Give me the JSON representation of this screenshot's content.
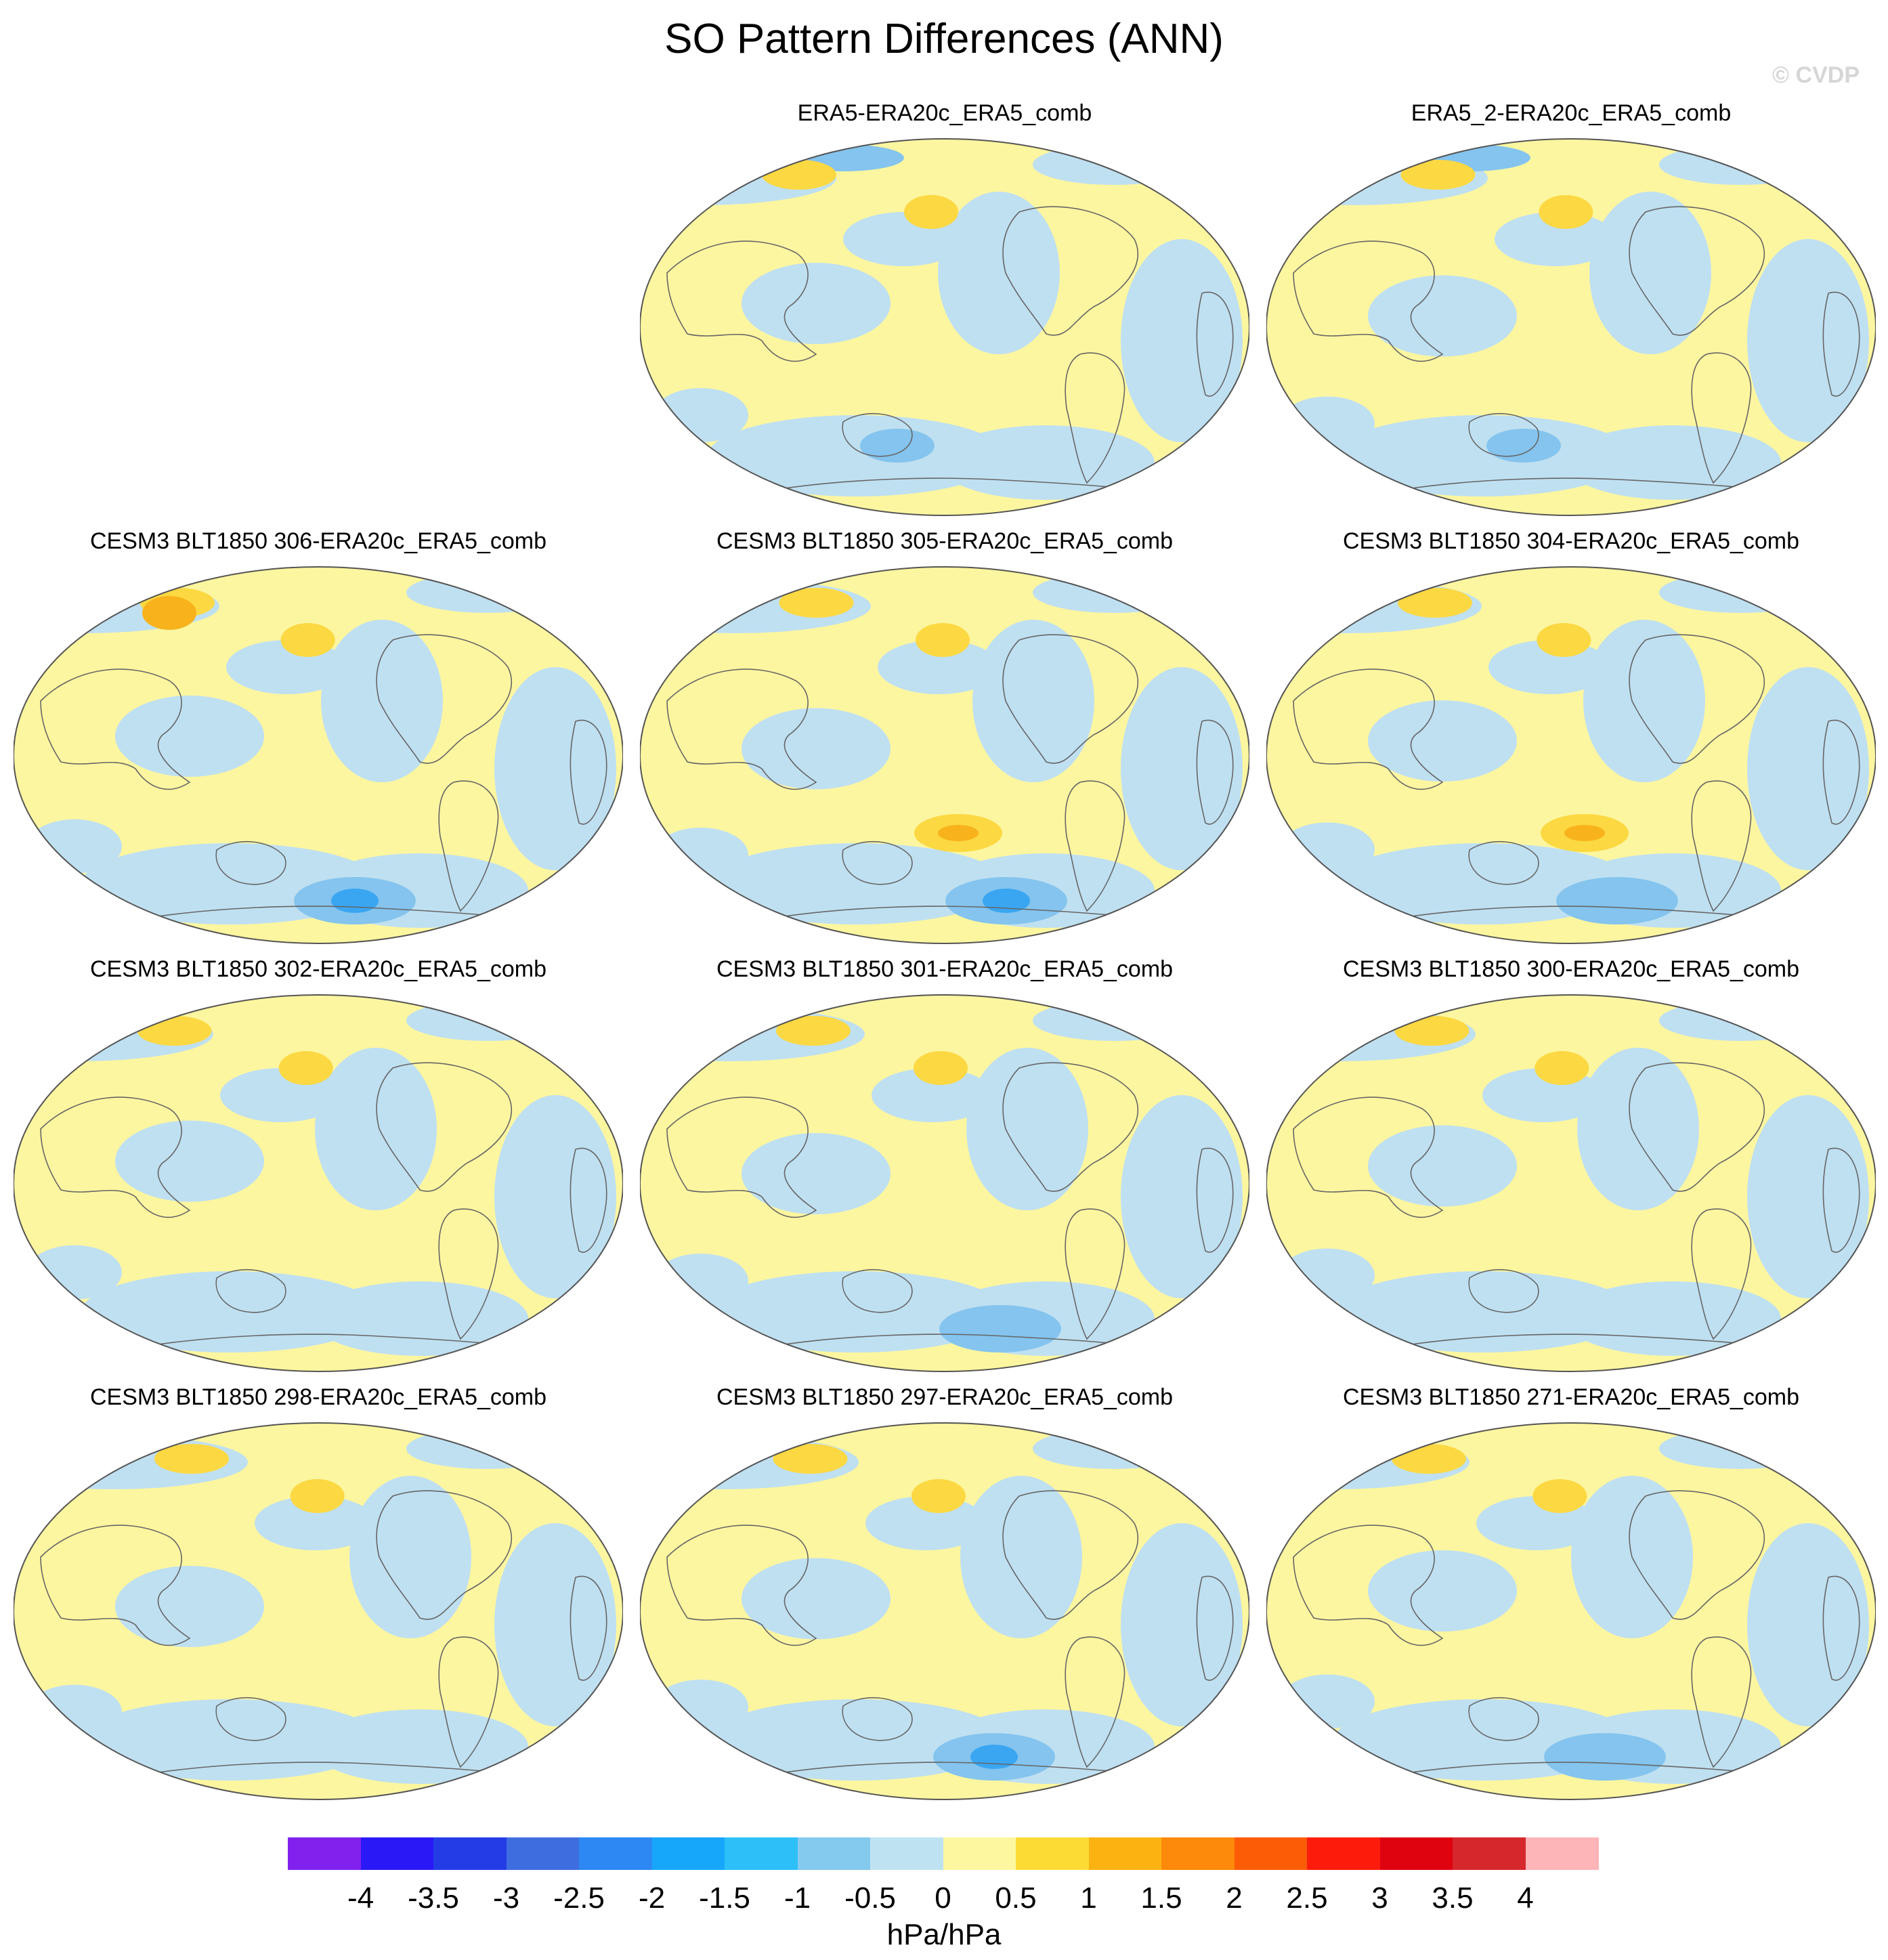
{
  "title": "SO Pattern Differences (ANN)",
  "copyright": "© CVDP",
  "units": "hPa/hPa",
  "palette": {
    "ocean_neg_light": "#bfe0f1",
    "pos_light": "#fdf6a0",
    "pos_mid": "#fcd842",
    "pos_strong": "#f7b21c",
    "neg_mid": "#84c4ee",
    "neg_strong": "#3aa6f2",
    "coast": "#666666"
  },
  "panels": [
    {
      "title": "ERA5-ERA20c_ERA5_comb"
    },
    {
      "title": "ERA5_2-ERA20c_ERA5_comb"
    },
    {
      "title": "CESM3 BLT1850 306-ERA20c_ERA5_comb"
    },
    {
      "title": "CESM3 BLT1850 305-ERA20c_ERA5_comb"
    },
    {
      "title": "CESM3 BLT1850 304-ERA20c_ERA5_comb"
    },
    {
      "title": "CESM3 BLT1850 302-ERA20c_ERA5_comb"
    },
    {
      "title": "CESM3 BLT1850 301-ERA20c_ERA5_comb"
    },
    {
      "title": "CESM3 BLT1850 300-ERA20c_ERA5_comb"
    },
    {
      "title": "CESM3 BLT1850 298-ERA20c_ERA5_comb"
    },
    {
      "title": "CESM3 BLT1850 297-ERA20c_ERA5_comb"
    },
    {
      "title": "CESM3 BLT1850 271-ERA20c_ERA5_comb"
    }
  ],
  "colorbar": {
    "colors": [
      "#8121ee",
      "#2a19f6",
      "#233ce6",
      "#3e6ddf",
      "#2d88f4",
      "#17a7fa",
      "#2dc0f8",
      "#84c9ee",
      "#bfe2f2",
      "#fdf7a0",
      "#fcdb35",
      "#fcb312",
      "#fd8a0b",
      "#fd5c07",
      "#fd1c0b",
      "#df0310",
      "#d6272d",
      "#fdb5b7"
    ],
    "labels": [
      "-4",
      "-3.5",
      "-3",
      "-2.5",
      "-2",
      "-1.5",
      "-1",
      "-0.5",
      "0",
      "0.5",
      "1",
      "1.5",
      "2",
      "2.5",
      "3",
      "3.5",
      "4"
    ]
  }
}
